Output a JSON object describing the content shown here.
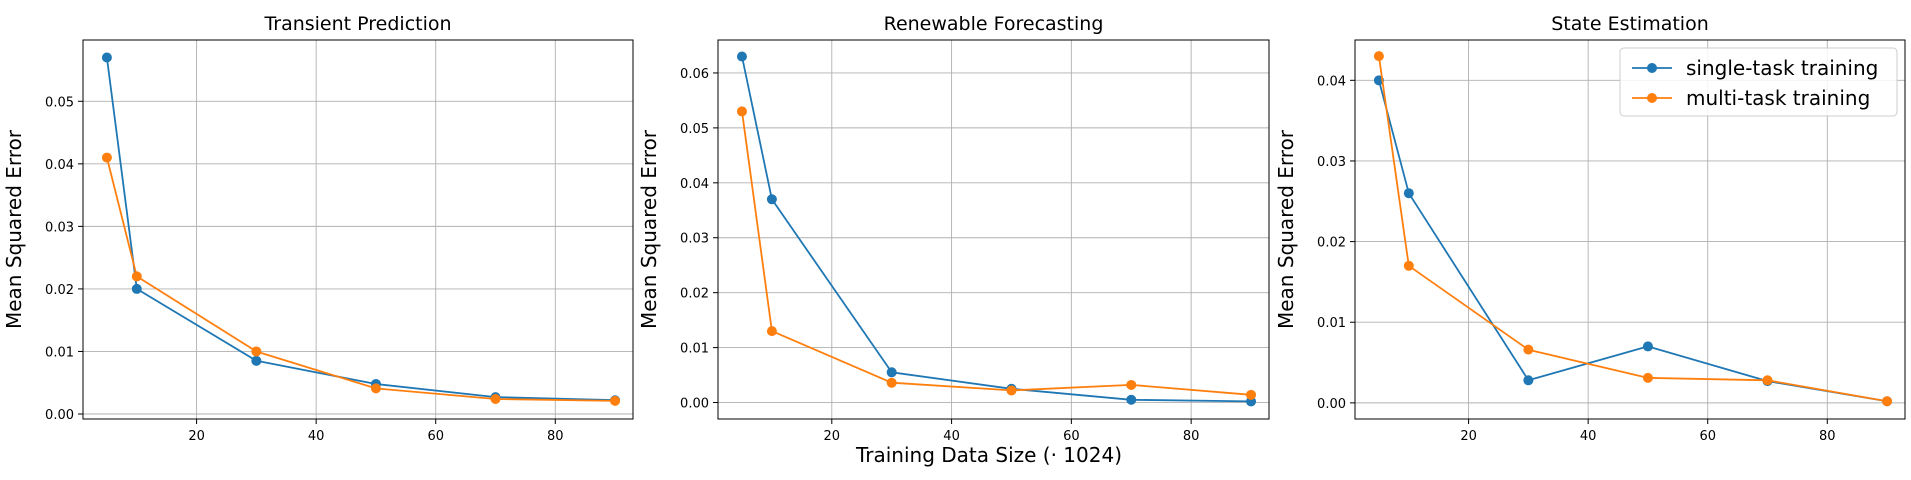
{
  "figure": {
    "xlabel": "Training Data Size (· 1024)"
  },
  "colors": {
    "single": "#1f77b4",
    "multi": "#ff7f0e",
    "grid": "#b0b0b0",
    "axes": "#000000"
  },
  "legend": {
    "placement": "top-right of third panel",
    "entries": [
      "single-task training",
      "multi-task training"
    ]
  },
  "chart_data": [
    {
      "type": "line",
      "title": "Transient Prediction",
      "ylabel": "Mean Squared Error",
      "xlabel": "",
      "x": [
        5,
        10,
        30,
        50,
        70,
        90
      ],
      "xlim": [
        1,
        93
      ],
      "ylim": [
        -0.0008,
        0.0598
      ],
      "xticks": [
        20,
        40,
        60,
        80
      ],
      "yticks": [
        0.0,
        0.01,
        0.02,
        0.03,
        0.04,
        0.05
      ],
      "ytick_labels": [
        "0.00",
        "0.01",
        "0.02",
        "0.03",
        "0.04",
        "0.05"
      ],
      "grid": true,
      "series": [
        {
          "name": "single-task training",
          "values": [
            0.057,
            0.02,
            0.0085,
            0.0048,
            0.0027,
            0.0022
          ]
        },
        {
          "name": "multi-task training",
          "values": [
            0.041,
            0.022,
            0.01,
            0.0041,
            0.0024,
            0.0021
          ]
        }
      ]
    },
    {
      "type": "line",
      "title": "Renewable Forecasting",
      "ylabel": "Mean Squared Error",
      "xlabel": "Training Data Size (· 1024)",
      "x": [
        5,
        10,
        30,
        50,
        70,
        90
      ],
      "xlim": [
        1,
        93
      ],
      "ylim": [
        -0.003,
        0.066
      ],
      "xticks": [
        20,
        40,
        60,
        80
      ],
      "yticks": [
        0.0,
        0.01,
        0.02,
        0.03,
        0.04,
        0.05,
        0.06
      ],
      "ytick_labels": [
        "0.00",
        "0.01",
        "0.02",
        "0.03",
        "0.04",
        "0.05",
        "0.06"
      ],
      "grid": true,
      "series": [
        {
          "name": "single-task training",
          "values": [
            0.063,
            0.037,
            0.0055,
            0.0025,
            0.0005,
            0.0002
          ]
        },
        {
          "name": "multi-task training",
          "values": [
            0.053,
            0.013,
            0.0036,
            0.0022,
            0.0032,
            0.0014
          ]
        }
      ]
    },
    {
      "type": "line",
      "title": "State Estimation",
      "ylabel": "Mean Squared Error",
      "xlabel": "",
      "x": [
        5,
        10,
        30,
        50,
        70,
        90
      ],
      "xlim": [
        1,
        93
      ],
      "ylim": [
        -0.002,
        0.045
      ],
      "xticks": [
        20,
        40,
        60,
        80
      ],
      "yticks": [
        0.0,
        0.01,
        0.02,
        0.03,
        0.04
      ],
      "ytick_labels": [
        "0.00",
        "0.01",
        "0.02",
        "0.03",
        "0.04"
      ],
      "grid": true,
      "legend": true,
      "series": [
        {
          "name": "single-task training",
          "values": [
            0.04,
            0.026,
            0.0028,
            0.007,
            0.0027,
            0.0002
          ]
        },
        {
          "name": "multi-task training",
          "values": [
            0.043,
            0.017,
            0.0066,
            0.0031,
            0.0028,
            0.0002
          ]
        }
      ]
    }
  ]
}
